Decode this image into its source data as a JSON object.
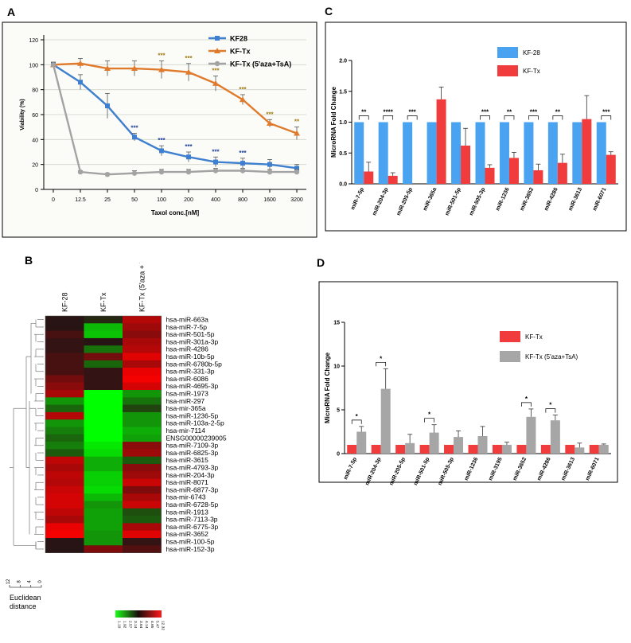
{
  "panels": {
    "a": "A",
    "b": "B",
    "c": "C",
    "d": "D"
  },
  "chart_data": [
    {
      "id": "A",
      "type": "line",
      "xlabel": "Taxol conc.[nM]",
      "ylabel": "Viability (%)",
      "categories": [
        "0",
        "12.5",
        "25",
        "50",
        "100",
        "200",
        "400",
        "800",
        "1600",
        "3200"
      ],
      "ylim": [
        0,
        120
      ],
      "yticks": [
        "0",
        "20",
        "40",
        "60",
        "80",
        "100",
        "120"
      ],
      "colors": {
        "blue": "#3f7fcf",
        "orange": "#e07a2c",
        "gray": "#a3a3a3",
        "blueSig": "#1f3f9c",
        "orangeSig": "#a07a12"
      },
      "series": [
        {
          "name": "KF28",
          "color": "#3f7fcf",
          "marker": "square",
          "values": [
            100,
            86,
            67,
            42,
            31,
            26,
            22,
            21,
            20,
            17
          ],
          "errors": [
            2,
            6,
            10,
            3,
            4,
            4,
            4,
            4,
            4,
            3
          ],
          "sig": [
            "",
            "",
            "",
            "***",
            "***",
            "***",
            "***",
            "***",
            "",
            ""
          ]
        },
        {
          "name": "KF-Tx",
          "color": "#e07a2c",
          "marker": "triangle",
          "values": [
            100,
            101,
            97,
            97,
            96,
            94,
            85,
            72,
            53,
            45
          ],
          "errors": [
            2,
            4,
            6,
            6,
            7,
            7,
            6,
            4,
            3,
            5
          ],
          "sig": [
            "",
            "",
            "",
            "",
            "***",
            "***",
            "***",
            "***",
            "***",
            "**"
          ]
        },
        {
          "name": "KF-Tx (5'aza+TsA)",
          "color": "#a3a3a3",
          "marker": "circle",
          "values": [
            100,
            14,
            12,
            13,
            14,
            14,
            15,
            15,
            14,
            14
          ],
          "errors": [
            2,
            1,
            1,
            2,
            2,
            2,
            2,
            2,
            2,
            2
          ],
          "sig": [
            "",
            "",
            "",
            "",
            "",
            "",
            "",
            "",
            "",
            ""
          ]
        }
      ]
    },
    {
      "id": "B",
      "type": "heatmap",
      "columns": [
        "KF-28",
        "KF-Tx",
        "KF-Tx (5'aza + TsA)"
      ],
      "rows": [
        "hsa-miR-663a",
        "hsa-miR-7-5p",
        "hsa-miR-501-5p",
        "hsa-miR-301a-3p",
        "hsa-miR-4286",
        "hsa-miR-10b-5p",
        "hsa-miR-6780b-5p",
        "hsa-miR-331-3p",
        "hsa-miR-6086",
        "hsa-miR-4695-3p",
        "hsa-miR-1973",
        "hsa-miR-297",
        "hsa-mir-365a",
        "hsa-miR-1236-5p",
        "hsa-miR-103a-2-5p",
        "hsa-mir-7114",
        "ENSG00000239005",
        "hsa-miR-7109-3p",
        "hsa-miR-6825-3p",
        "hsa-miR-3615",
        "hsa-miR-4793-3p",
        "hsa-miR-204-3p",
        "hsa-miR-8071",
        "hsa-miR-6877-3p",
        "hsa-mir-6743",
        "hsa-miR-6728-5p",
        "hsa-miR-1913",
        "hsa-miR-7113-3p",
        "hsa-miR-6775-3p",
        "hsa-miR-3652",
        "hsa-miR-100-5p",
        "hsa-miR-152-3p"
      ],
      "values": [
        [
          0.0,
          -0.08,
          0.65
        ],
        [
          0.0,
          -0.7,
          0.55
        ],
        [
          0.15,
          -0.75,
          0.45
        ],
        [
          0.05,
          0.0,
          0.6
        ],
        [
          0.05,
          -0.4,
          0.65
        ],
        [
          0.15,
          0.35,
          0.85
        ],
        [
          0.15,
          -0.35,
          0.6
        ],
        [
          0.15,
          0.05,
          0.9
        ],
        [
          0.35,
          0.05,
          0.95
        ],
        [
          0.45,
          0.05,
          0.8
        ],
        [
          0.6,
          -1.0,
          -0.55
        ],
        [
          -0.55,
          -1.0,
          -0.4
        ],
        [
          -0.35,
          -1.0,
          -0.2
        ],
        [
          0.65,
          -1.0,
          -0.55
        ],
        [
          -0.55,
          -1.0,
          -0.55
        ],
        [
          -0.45,
          -1.0,
          -0.65
        ],
        [
          -0.35,
          -1.0,
          -0.6
        ],
        [
          -0.45,
          -0.9,
          0.45
        ],
        [
          -0.3,
          -0.85,
          0.55
        ],
        [
          0.7,
          -0.65,
          -0.3
        ],
        [
          0.6,
          -0.65,
          0.45
        ],
        [
          0.7,
          -0.8,
          0.55
        ],
        [
          0.65,
          -0.8,
          0.75
        ],
        [
          0.75,
          -0.85,
          0.4
        ],
        [
          0.8,
          -0.7,
          0.6
        ],
        [
          0.8,
          -0.55,
          0.75
        ],
        [
          0.7,
          -0.6,
          -0.25
        ],
        [
          0.6,
          -0.6,
          -0.3
        ],
        [
          0.9,
          -0.6,
          0.6
        ],
        [
          0.95,
          -0.55,
          0.85
        ],
        [
          0.0,
          -0.55,
          0.05
        ],
        [
          0.0,
          0.4,
          0.2
        ]
      ],
      "scale_ticks": [
        "1.10",
        "1.92",
        "2.57",
        "3.14",
        "3.64",
        "4.14",
        "4.65",
        "5.47",
        "12.32"
      ],
      "dendro_ticks": [
        "12",
        "8",
        "4",
        "0"
      ],
      "dendro_label_1": "Euclidean",
      "dendro_label_2": "distance"
    },
    {
      "id": "C",
      "type": "bar",
      "ylabel": "MicroRNA Fold Change",
      "ylim": [
        0,
        2.0
      ],
      "yticks": [
        "0.0",
        "0.5",
        "1.0",
        "1.5",
        "2.0"
      ],
      "categories": [
        "miR-7-5p",
        "miR-204-3p",
        "miR-205-5p",
        "miR-365a",
        "miR-501-5p",
        "miR-505-3p",
        "miR-1236",
        "miR-3652",
        "miR-4286",
        "miR-3613",
        "miR-6071"
      ],
      "series": [
        {
          "name": "KF-28",
          "color": "#4aa3f0",
          "values": [
            1,
            1,
            1,
            1,
            1,
            1,
            1,
            1,
            1,
            1,
            1
          ],
          "errors": [
            0,
            0,
            0,
            0,
            0,
            0,
            0,
            0,
            0,
            0,
            0
          ]
        },
        {
          "name": "KF-Tx",
          "color": "#f03c3c",
          "values": [
            0.2,
            0.13,
            0,
            1.37,
            0.62,
            0.26,
            0.42,
            0.22,
            0.34,
            1.05,
            0.47
          ],
          "errors": [
            0.15,
            0.05,
            0,
            0.2,
            0.28,
            0.05,
            0.09,
            0.1,
            0.14,
            0.38,
            0.05
          ]
        }
      ],
      "sig": [
        "**",
        "****",
        "***",
        "",
        "",
        "***",
        "**",
        "***",
        "**",
        "",
        "***"
      ]
    },
    {
      "id": "D",
      "type": "bar",
      "ylabel": "MicroRNA Fold Change",
      "ylim": [
        0,
        15
      ],
      "yticks": [
        "0",
        "5",
        "10",
        "15"
      ],
      "categories": [
        "miR-7-5p",
        "miR-204-3p",
        "miR-205-5p",
        "miR-501-5p",
        "miR-505-3p",
        "miR-1236",
        "miR-3195",
        "miR-3652",
        "miR-4286",
        "miR-3613",
        "miR-6071"
      ],
      "series": [
        {
          "name": "KF-Tx",
          "color": "#f03c3c",
          "values": [
            1,
            1,
            1,
            1,
            1,
            1,
            1,
            1,
            1,
            1,
            1
          ],
          "errors": [
            0,
            0,
            0,
            0,
            0,
            0,
            0,
            0,
            0,
            0,
            0
          ]
        },
        {
          "name": "KF-Tx (5'aza+TsA)",
          "color": "#a6a6a6",
          "values": [
            2.5,
            7.4,
            1.2,
            2.4,
            1.9,
            2.0,
            1.0,
            4.2,
            3.8,
            0.7,
            1.0
          ],
          "errors": [
            0.6,
            2.3,
            1.0,
            0.9,
            0.7,
            1.1,
            0.3,
            0.9,
            0.6,
            0.5,
            0.1
          ]
        }
      ],
      "sig": [
        "*",
        "*",
        "",
        "*",
        "",
        "",
        "",
        "*",
        "*",
        "",
        ""
      ]
    }
  ]
}
